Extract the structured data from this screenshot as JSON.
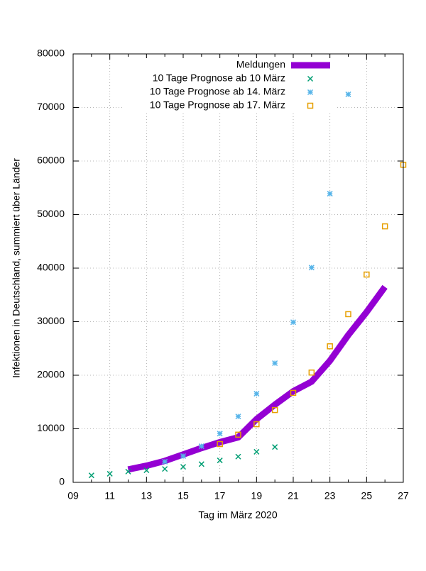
{
  "chart_data": {
    "type": "line",
    "x_label": "Tag im März 2020",
    "y_label": "Infektionen in Deutschland, summiert über Länder",
    "xlim": [
      9,
      27
    ],
    "xticks": [
      {
        "value": 9,
        "label": "09"
      },
      11,
      13,
      15,
      17,
      19,
      21,
      23,
      25,
      27
    ],
    "ylim": [
      0,
      80000
    ],
    "yticks": [
      0,
      10000,
      20000,
      30000,
      40000,
      50000,
      60000,
      70000,
      80000
    ],
    "grid": true,
    "legend": "top-right",
    "series": [
      {
        "name": "Meldungen",
        "color": "#9400d3",
        "mode": "line",
        "x": [
          12,
          13,
          14,
          15,
          16,
          17,
          18,
          19,
          20,
          21,
          22,
          23,
          24,
          25,
          26
        ],
        "values": [
          2400,
          3100,
          4000,
          5200,
          6400,
          7500,
          8400,
          11800,
          14500,
          17000,
          18800,
          22700,
          27500,
          31800,
          36500
        ]
      },
      {
        "name": "10 Tage Prognose ab 10 März",
        "color": "#009e73",
        "mode": "points",
        "marker": "x",
        "x": [
          10,
          11,
          12,
          13,
          14,
          15,
          16,
          17,
          18,
          19,
          20
        ],
        "values": [
          1300,
          1600,
          2000,
          2250,
          2500,
          2900,
          3400,
          4100,
          4800,
          5700,
          6600
        ]
      },
      {
        "name": "10 Tage Prognose ab 14. März",
        "color": "#56b4e9",
        "mode": "points",
        "marker": "asterisk",
        "x": [
          14,
          15,
          16,
          17,
          18,
          19,
          20,
          21,
          22,
          23,
          24
        ],
        "values": [
          3850,
          4900,
          6750,
          9100,
          12300,
          16550,
          22250,
          29900,
          40100,
          53900,
          72450
        ]
      },
      {
        "name": "10 Tage Prognose ab 17. März",
        "color": "#e69f00",
        "mode": "points",
        "marker": "square",
        "x": [
          17,
          18,
          19,
          20,
          21,
          22,
          23,
          24,
          25,
          26,
          27
        ],
        "values": [
          7150,
          8900,
          10850,
          13500,
          16700,
          20500,
          25400,
          31400,
          38800,
          47800,
          59300
        ]
      }
    ]
  }
}
